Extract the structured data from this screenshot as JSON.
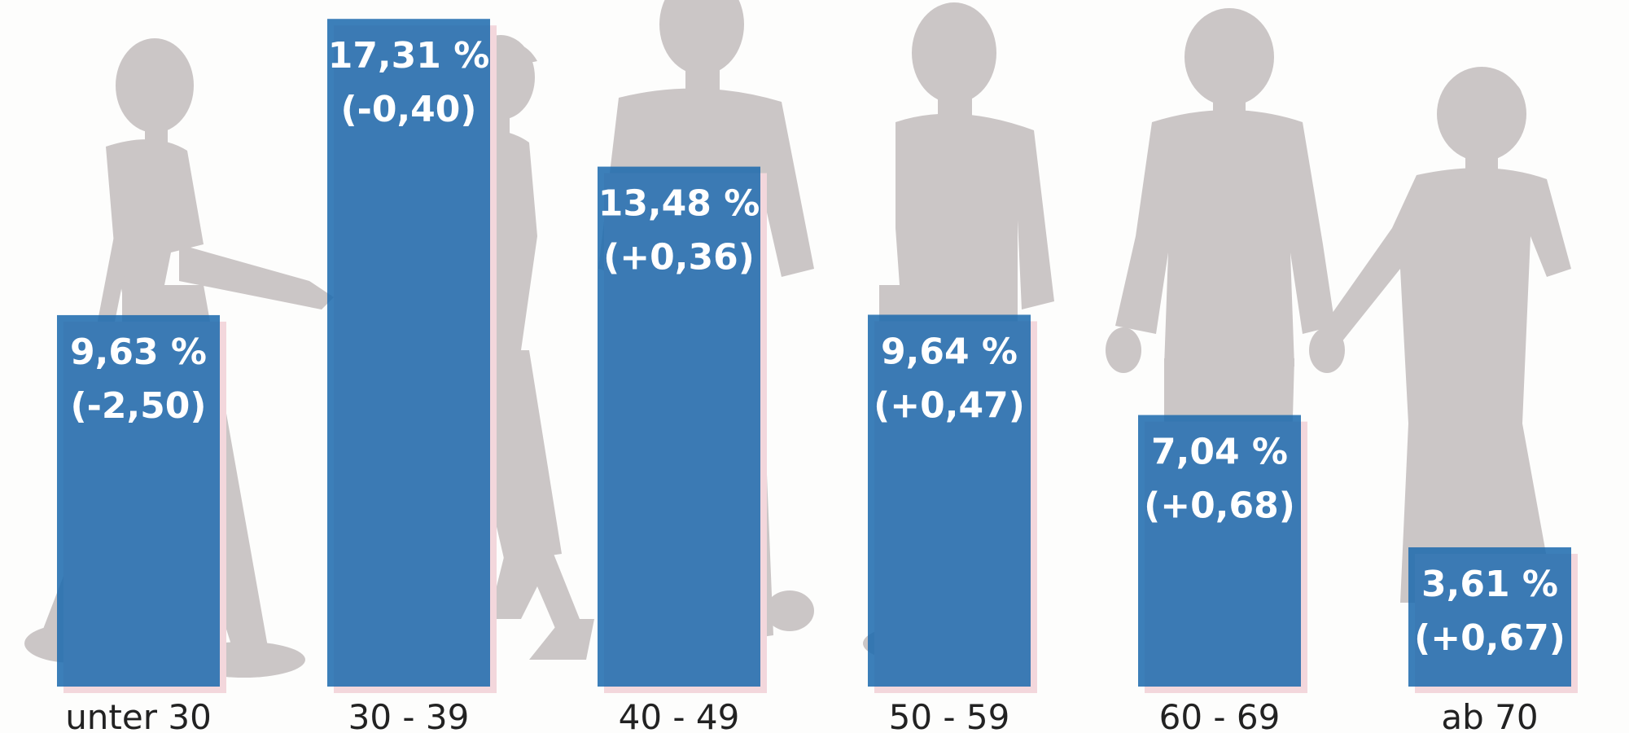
{
  "chart_data": {
    "type": "bar",
    "categories": [
      "unter 30",
      "30 - 39",
      "40 - 49",
      "50 - 59",
      "60 - 69",
      "ab 70"
    ],
    "values": [
      9.63,
      17.31,
      13.48,
      9.64,
      7.04,
      3.61
    ],
    "value_labels": [
      "9,63 %",
      "17,31 %",
      "13,48 %",
      "9,64 %",
      "7,04 %",
      "3,61 %"
    ],
    "change_labels": [
      "(-2,50)",
      "(-0,40)",
      "(+0,36)",
      "(+0,47)",
      "(+0,68)",
      "(+0,67)"
    ],
    "changes": [
      -2.5,
      -0.4,
      0.36,
      0.47,
      0.68,
      0.67
    ],
    "ylim": [
      0,
      17.8
    ],
    "grid": false,
    "colors": {
      "bar": "#1c6aae",
      "silhouette": "#cbc6c6",
      "shadow": "#f3d7dc"
    },
    "background_icons": [
      "person-silhouette-young",
      "person-silhouette-woman",
      "person-silhouette-man",
      "person-silhouette-man-middleaged",
      "person-silhouette-senior-man",
      "person-silhouette-senior-woman"
    ]
  }
}
